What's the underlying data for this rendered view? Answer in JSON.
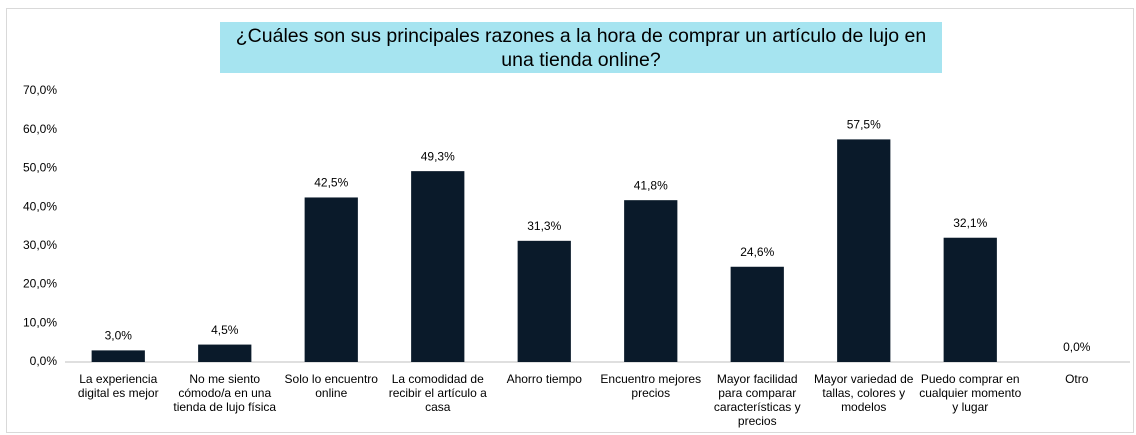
{
  "chart_data": {
    "type": "bar",
    "title": "¿Cuáles son sus principales razones a la hora de comprar un artículo de lujo en una tienda online?",
    "categories": [
      "La experiencia digital es mejor",
      "No me siento cómodo/a en una tienda de lujo física",
      "Solo lo encuentro online",
      "La comodidad de recibir el artículo a casa",
      "Ahorro tiempo",
      "Encuentro mejores precios",
      "Mayor facilidad para comparar características y precios",
      "Mayor variedad de tallas, colores y modelos",
      "Puedo comprar en cualquier momento y lugar",
      "Otro"
    ],
    "values": [
      3.0,
      4.5,
      42.5,
      49.3,
      31.3,
      41.8,
      24.6,
      57.5,
      32.1,
      0.0
    ],
    "value_labels": [
      "3,0%",
      "4,5%",
      "42,5%",
      "49,3%",
      "31,3%",
      "41,8%",
      "24,6%",
      "57,5%",
      "32,1%",
      "0,0%"
    ],
    "color": "#0a1a2a",
    "ylim": [
      0,
      70
    ],
    "yticks": [
      {
        "value": 0,
        "label": "0,0%"
      },
      {
        "value": 10,
        "label": "10,0%"
      },
      {
        "value": 20,
        "label": "20,0%"
      },
      {
        "value": 30,
        "label": "30,0%"
      },
      {
        "value": 40,
        "label": "40,0%"
      },
      {
        "value": 50,
        "label": "50,0%"
      },
      {
        "value": 60,
        "label": "60,0%"
      },
      {
        "value": 70,
        "label": "70,0%"
      }
    ],
    "grid": false
  }
}
